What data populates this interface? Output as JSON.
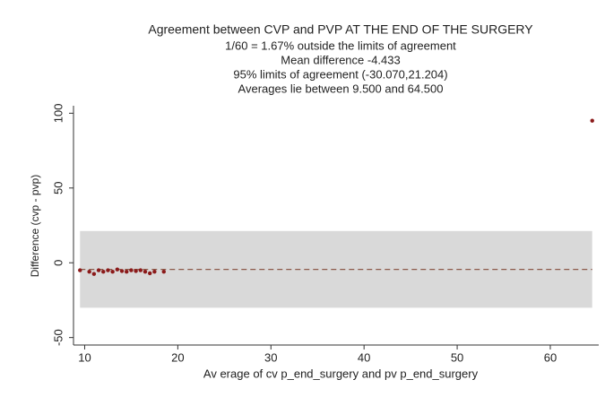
{
  "chart_data": {
    "type": "scatter",
    "title": "Agreement between CVP and PVP AT THE END OF THE SURGERY",
    "subtitle": [
      "1/60 =   1.67% outside the limits of agreement",
      "Mean difference -4.433",
      "95% limits of agreement (-30.070,21.204)",
      "Averages lie between 9.500 and 64.500"
    ],
    "x_label": "Av erage of cv p_end_surgery and pv p_end_surgery",
    "y_label": "Difference (cvp - pvp)",
    "xlim": [
      8.8,
      65.2
    ],
    "ylim": [
      -55,
      105
    ],
    "xticks": [
      10,
      20,
      30,
      40,
      50,
      60
    ],
    "yticks": [
      -50,
      0,
      50,
      100
    ],
    "mean": -4.433,
    "limits": [
      -30.07,
      21.204
    ],
    "range": [
      9.5,
      64.5
    ],
    "band_color": "#d9d9d9",
    "mean_color": "#8c5a4a",
    "series": [
      {
        "color": "#8b1a1a",
        "x": [
          9.5,
          10.5,
          11,
          11.5,
          12,
          12.5,
          13,
          13.5,
          14,
          14.5,
          15,
          15.5,
          16,
          16.5,
          17,
          17.5,
          18.5,
          64.5
        ],
        "values": [
          -5,
          -6,
          -7.5,
          -5,
          -6,
          -5,
          -6,
          -4.5,
          -5.5,
          -6,
          -5,
          -5.5,
          -5,
          -6,
          -7,
          -6,
          -6,
          95
        ]
      }
    ]
  }
}
